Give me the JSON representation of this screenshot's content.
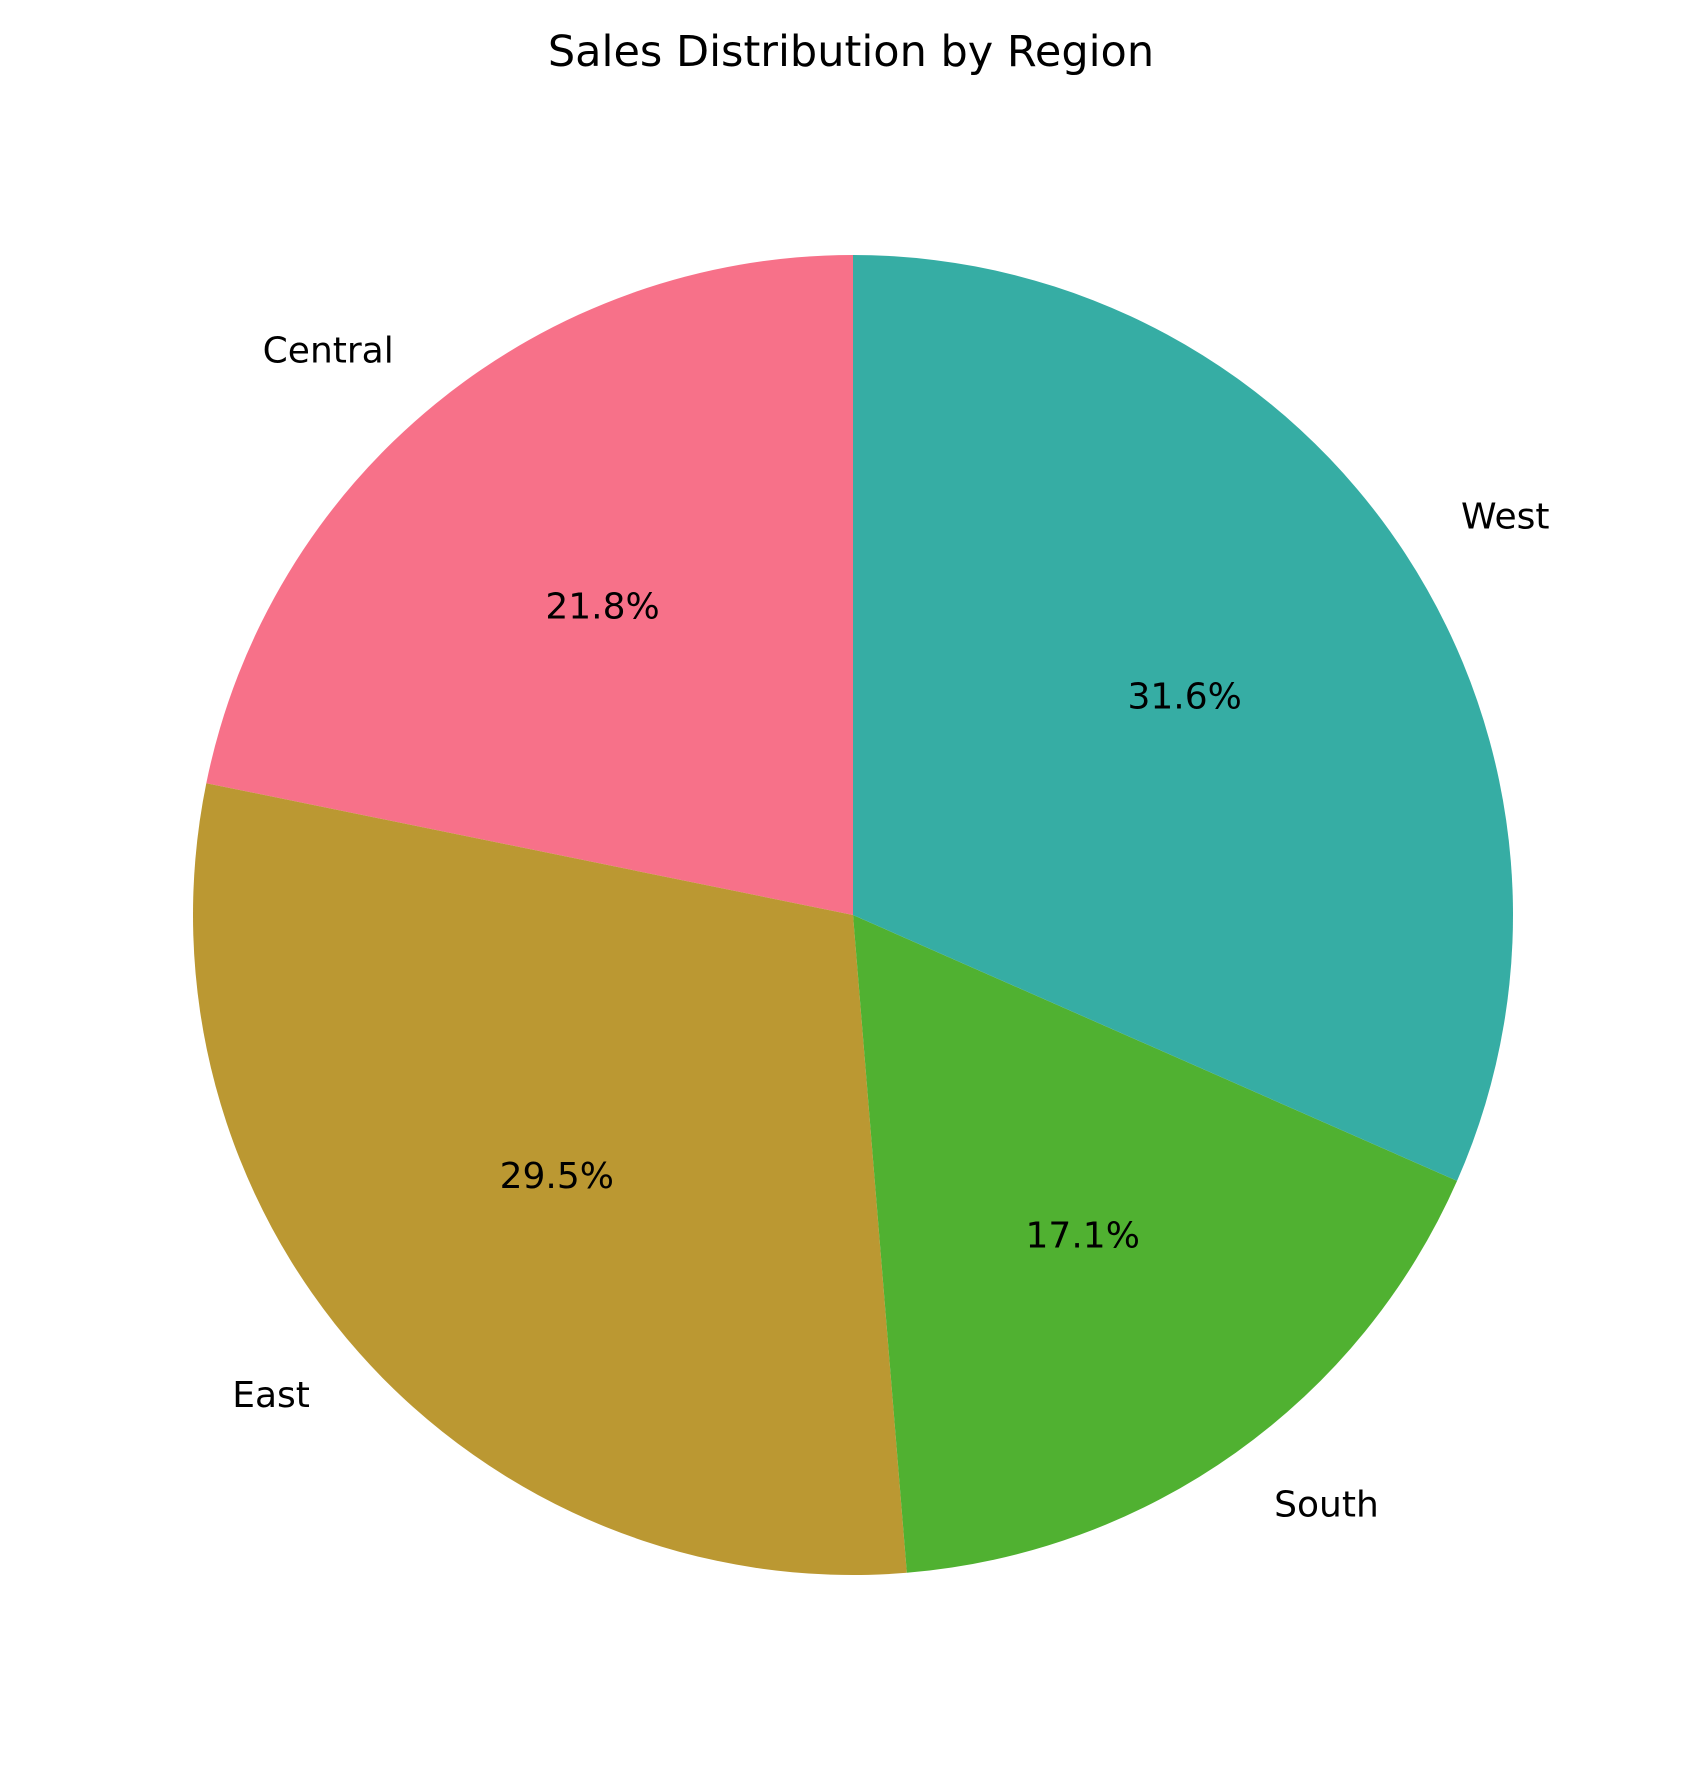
{
  "chart_data": {
    "type": "pie",
    "title": "Sales Distribution by Region",
    "start_angle_deg": 90,
    "direction": "counterclockwise",
    "slices": [
      {
        "label": "Central",
        "value": 21.8,
        "pct_label": "21.8%",
        "color": "#f77189"
      },
      {
        "label": "East",
        "value": 29.5,
        "pct_label": "29.5%",
        "color": "#bb9832"
      },
      {
        "label": "South",
        "value": 17.1,
        "pct_label": "17.1%",
        "color": "#50b131"
      },
      {
        "label": "West",
        "value": 31.6,
        "pct_label": "31.6%",
        "color": "#36ada4"
      }
    ]
  }
}
